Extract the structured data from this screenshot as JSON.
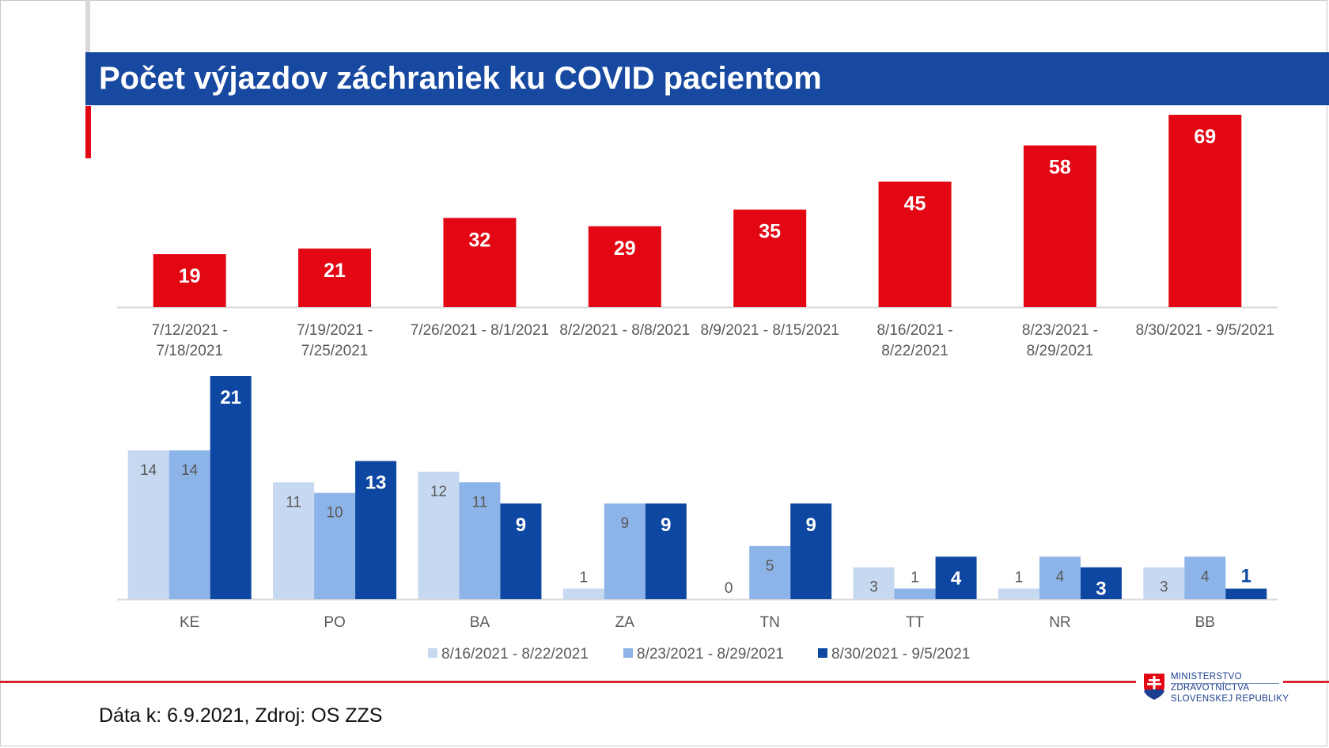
{
  "header": {
    "title": "Počet výjazdov záchraniek ku COVID pacientom"
  },
  "footer": {
    "source": "Dáta k: 6.9.2021, Zdroj: OS ZZS"
  },
  "logo": {
    "line1": "MINISTERSTVO",
    "line2": "ZDRAVOTNÍCTVA",
    "line3": "SLOVENSKEJ REPUBLIKY"
  },
  "colors": {
    "top_bars": "#e30613",
    "series_light": "#c6d9f1",
    "series_mid": "#8db4e8",
    "series_dark": "#0d47a1",
    "title_band": "#1849a0"
  },
  "chart_data": [
    {
      "type": "bar",
      "categories": [
        [
          "7/12/2021 -",
          "7/18/2021"
        ],
        [
          "7/19/2021 -",
          "7/25/2021"
        ],
        [
          "7/26/2021 - 8/1/2021"
        ],
        [
          "8/2/2021 - 8/8/2021"
        ],
        [
          "8/9/2021 - 8/15/2021"
        ],
        [
          "8/16/2021 -",
          "8/22/2021"
        ],
        [
          "8/23/2021 -",
          "8/29/2021"
        ],
        [
          "8/30/2021 - 9/5/2021"
        ]
      ],
      "values": [
        19,
        21,
        32,
        29,
        35,
        45,
        58,
        69
      ],
      "ylim": [
        0,
        69
      ],
      "grid": false
    },
    {
      "type": "bar",
      "categories": [
        "KE",
        "PO",
        "BA",
        "ZA",
        "TN",
        "TT",
        "NR",
        "BB"
      ],
      "series": [
        {
          "name": "8/16/2021 - 8/22/2021",
          "values": [
            14,
            11,
            12,
            1,
            0,
            3,
            1,
            3
          ]
        },
        {
          "name": "8/23/2021 - 8/29/2021",
          "values": [
            14,
            10,
            11,
            9,
            5,
            1,
            4,
            4
          ]
        },
        {
          "name": "8/30/2021 - 9/5/2021",
          "values": [
            21,
            13,
            9,
            9,
            9,
            4,
            3,
            1
          ]
        }
      ],
      "ylim": [
        0,
        21
      ],
      "legend": "bottom",
      "grid": false
    }
  ]
}
